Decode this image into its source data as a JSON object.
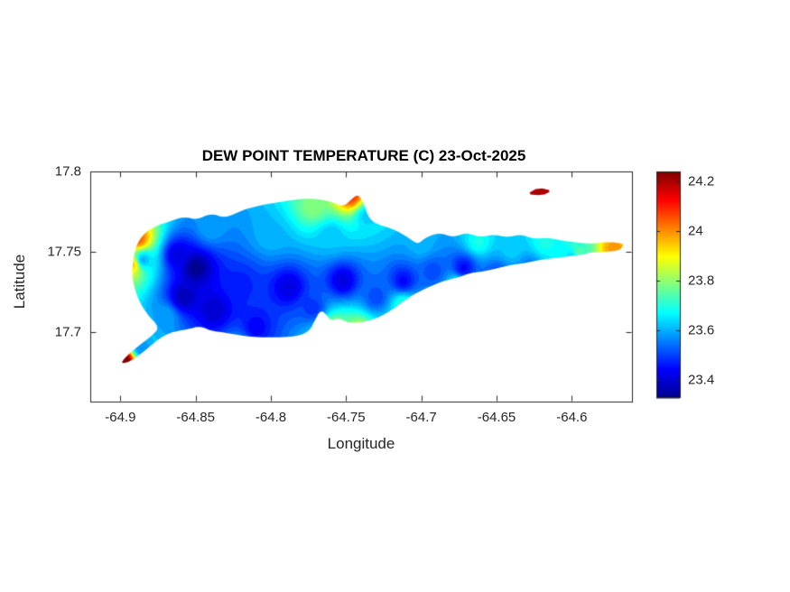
{
  "chart_data": {
    "type": "heatmap",
    "subtype": "filled-contour-geographic-map",
    "title": "DEW POINT TEMPERATURE (C) 23-Oct-2025",
    "xlabel": "Longitude",
    "ylabel": "Latitude",
    "xlim": [
      -64.92,
      -64.56
    ],
    "ylim": [
      17.657,
      17.8
    ],
    "xticks": [
      -64.9,
      -64.85,
      -64.8,
      -64.75,
      -64.7,
      -64.65,
      -64.6
    ],
    "xtick_labels": [
      "-64.9",
      "-64.85",
      "-64.8",
      "-64.75",
      "-64.7",
      "-64.65",
      "-64.6"
    ],
    "yticks": [
      17.7,
      17.75,
      17.8
    ],
    "ytick_labels": [
      "17.7",
      "17.75",
      "17.8"
    ],
    "grid": false,
    "legend": "colorbar-right",
    "clim": [
      23.33,
      24.24
    ],
    "colorbar_ticks": [
      23.4,
      23.6,
      23.8,
      24,
      24.2
    ],
    "colorbar_tick_labels": [
      "23.4",
      "23.6",
      "23.8",
      "24",
      "24.2"
    ],
    "colormap": {
      "name": "jet",
      "stops": [
        {
          "t": 0.0,
          "color": "#00008F"
        },
        {
          "t": 0.125,
          "color": "#0000FF"
        },
        {
          "t": 0.375,
          "color": "#00FFFF"
        },
        {
          "t": 0.625,
          "color": "#FFFF00"
        },
        {
          "t": 0.875,
          "color": "#FF0000"
        },
        {
          "t": 1.0,
          "color": "#800000"
        }
      ]
    },
    "contour_levels": 40,
    "idw_power": 2.5,
    "axis_color": "#262626",
    "island_outline": [
      [
        -64.9,
        17.681
      ],
      [
        -64.894,
        17.687
      ],
      [
        -64.886,
        17.693
      ],
      [
        -64.879,
        17.698
      ],
      [
        -64.874,
        17.703
      ],
      [
        -64.882,
        17.711
      ],
      [
        -64.888,
        17.72
      ],
      [
        -64.892,
        17.732
      ],
      [
        -64.892,
        17.742
      ],
      [
        -64.89,
        17.753
      ],
      [
        -64.885,
        17.761
      ],
      [
        -64.877,
        17.766
      ],
      [
        -64.867,
        17.769
      ],
      [
        -64.858,
        17.772
      ],
      [
        -64.849,
        17.77
      ],
      [
        -64.84,
        17.774
      ],
      [
        -64.83,
        17.771
      ],
      [
        -64.819,
        17.776
      ],
      [
        -64.807,
        17.779
      ],
      [
        -64.794,
        17.781
      ],
      [
        -64.781,
        17.783
      ],
      [
        -64.769,
        17.783
      ],
      [
        -64.759,
        17.781
      ],
      [
        -64.752,
        17.778
      ],
      [
        -64.746,
        17.783
      ],
      [
        -64.742,
        17.786
      ],
      [
        -64.738,
        17.78
      ],
      [
        -64.735,
        17.771
      ],
      [
        -64.729,
        17.767
      ],
      [
        -64.721,
        17.765
      ],
      [
        -64.712,
        17.761
      ],
      [
        -64.706,
        17.757
      ],
      [
        -64.702,
        17.755
      ],
      [
        -64.697,
        17.759
      ],
      [
        -64.688,
        17.762
      ],
      [
        -64.679,
        17.759
      ],
      [
        -64.67,
        17.762
      ],
      [
        -64.661,
        17.759
      ],
      [
        -64.652,
        17.761
      ],
      [
        -64.643,
        17.759
      ],
      [
        -64.634,
        17.761
      ],
      [
        -64.625,
        17.758
      ],
      [
        -64.616,
        17.759
      ],
      [
        -64.607,
        17.757
      ],
      [
        -64.597,
        17.756
      ],
      [
        -64.588,
        17.755
      ],
      [
        -64.579,
        17.756
      ],
      [
        -64.572,
        17.756
      ],
      [
        -64.565,
        17.755
      ],
      [
        -64.568,
        17.751
      ],
      [
        -64.577,
        17.75
      ],
      [
        -64.586,
        17.75
      ],
      [
        -64.595,
        17.748
      ],
      [
        -64.604,
        17.747
      ],
      [
        -64.613,
        17.746
      ],
      [
        -64.622,
        17.745
      ],
      [
        -64.631,
        17.743
      ],
      [
        -64.64,
        17.742
      ],
      [
        -64.649,
        17.74
      ],
      [
        -64.658,
        17.738
      ],
      [
        -64.667,
        17.737
      ],
      [
        -64.676,
        17.734
      ],
      [
        -64.685,
        17.732
      ],
      [
        -64.693,
        17.729
      ],
      [
        -64.7,
        17.726
      ],
      [
        -64.706,
        17.723
      ],
      [
        -64.712,
        17.719
      ],
      [
        -64.718,
        17.715
      ],
      [
        -64.723,
        17.712
      ],
      [
        -64.729,
        17.709
      ],
      [
        -64.736,
        17.707
      ],
      [
        -64.742,
        17.706
      ],
      [
        -64.749,
        17.706
      ],
      [
        -64.755,
        17.709
      ],
      [
        -64.76,
        17.707
      ],
      [
        -64.763,
        17.711
      ],
      [
        -64.767,
        17.714
      ],
      [
        -64.771,
        17.707
      ],
      [
        -64.774,
        17.701
      ],
      [
        -64.781,
        17.698
      ],
      [
        -64.79,
        17.697
      ],
      [
        -64.8,
        17.697
      ],
      [
        -64.81,
        17.697
      ],
      [
        -64.82,
        17.698
      ],
      [
        -64.831,
        17.7
      ],
      [
        -64.84,
        17.701
      ],
      [
        -64.847,
        17.704
      ],
      [
        -64.855,
        17.702
      ],
      [
        -64.861,
        17.701
      ],
      [
        -64.866,
        17.7
      ],
      [
        -64.873,
        17.697
      ],
      [
        -64.882,
        17.69
      ],
      [
        -64.89,
        17.684
      ],
      [
        -64.896,
        17.681
      ]
    ],
    "islet": {
      "outline": [
        [
          -64.63,
          17.786
        ],
        [
          -64.622,
          17.79
        ],
        [
          -64.613,
          17.788
        ],
        [
          -64.62,
          17.785
        ]
      ],
      "value": 24.2
    },
    "stations_lon_lat_value": [
      [
        -64.85,
        17.74,
        23.34
      ],
      [
        -64.858,
        17.722,
        23.38
      ],
      [
        -64.838,
        17.714,
        23.4
      ],
      [
        -64.862,
        17.748,
        23.42
      ],
      [
        -64.82,
        17.73,
        23.48
      ],
      [
        -64.81,
        17.703,
        23.45
      ],
      [
        -64.788,
        17.728,
        23.42
      ],
      [
        -64.772,
        17.715,
        23.5
      ],
      [
        -64.752,
        17.732,
        23.42
      ],
      [
        -64.73,
        17.722,
        23.52
      ],
      [
        -64.712,
        17.732,
        23.46
      ],
      [
        -64.692,
        17.738,
        23.52
      ],
      [
        -64.672,
        17.74,
        23.46
      ],
      [
        -64.65,
        17.736,
        23.52
      ],
      [
        -64.628,
        17.74,
        23.56
      ],
      [
        -64.885,
        17.745,
        23.62
      ],
      [
        -64.87,
        17.71,
        23.6
      ],
      [
        -64.84,
        17.765,
        23.6
      ],
      [
        -64.8,
        17.76,
        23.62
      ],
      [
        -64.76,
        17.76,
        23.63
      ],
      [
        -64.7,
        17.755,
        23.62
      ],
      [
        -64.64,
        17.752,
        23.64
      ],
      [
        -64.6,
        17.748,
        23.66
      ],
      [
        -64.82,
        17.69,
        23.62
      ],
      [
        -64.75,
        17.695,
        23.66
      ],
      [
        -64.898,
        17.682,
        24.3
      ],
      [
        -64.888,
        17.758,
        24.05
      ],
      [
        -64.747,
        17.785,
        24.1
      ],
      [
        -64.772,
        17.778,
        23.8
      ],
      [
        -64.742,
        17.7,
        23.9
      ],
      [
        -64.758,
        17.702,
        23.85
      ],
      [
        -64.572,
        17.752,
        24.0
      ],
      [
        -64.596,
        17.75,
        23.75
      ],
      [
        -64.662,
        17.756,
        23.7
      ],
      [
        -64.618,
        17.756,
        23.7
      ],
      [
        -64.886,
        17.69,
        23.58
      ],
      [
        -64.892,
        17.742,
        23.95
      ],
      [
        -64.712,
        17.717,
        23.72
      ],
      [
        -64.676,
        17.73,
        23.68
      ],
      [
        -64.736,
        17.772,
        23.64
      ]
    ]
  }
}
